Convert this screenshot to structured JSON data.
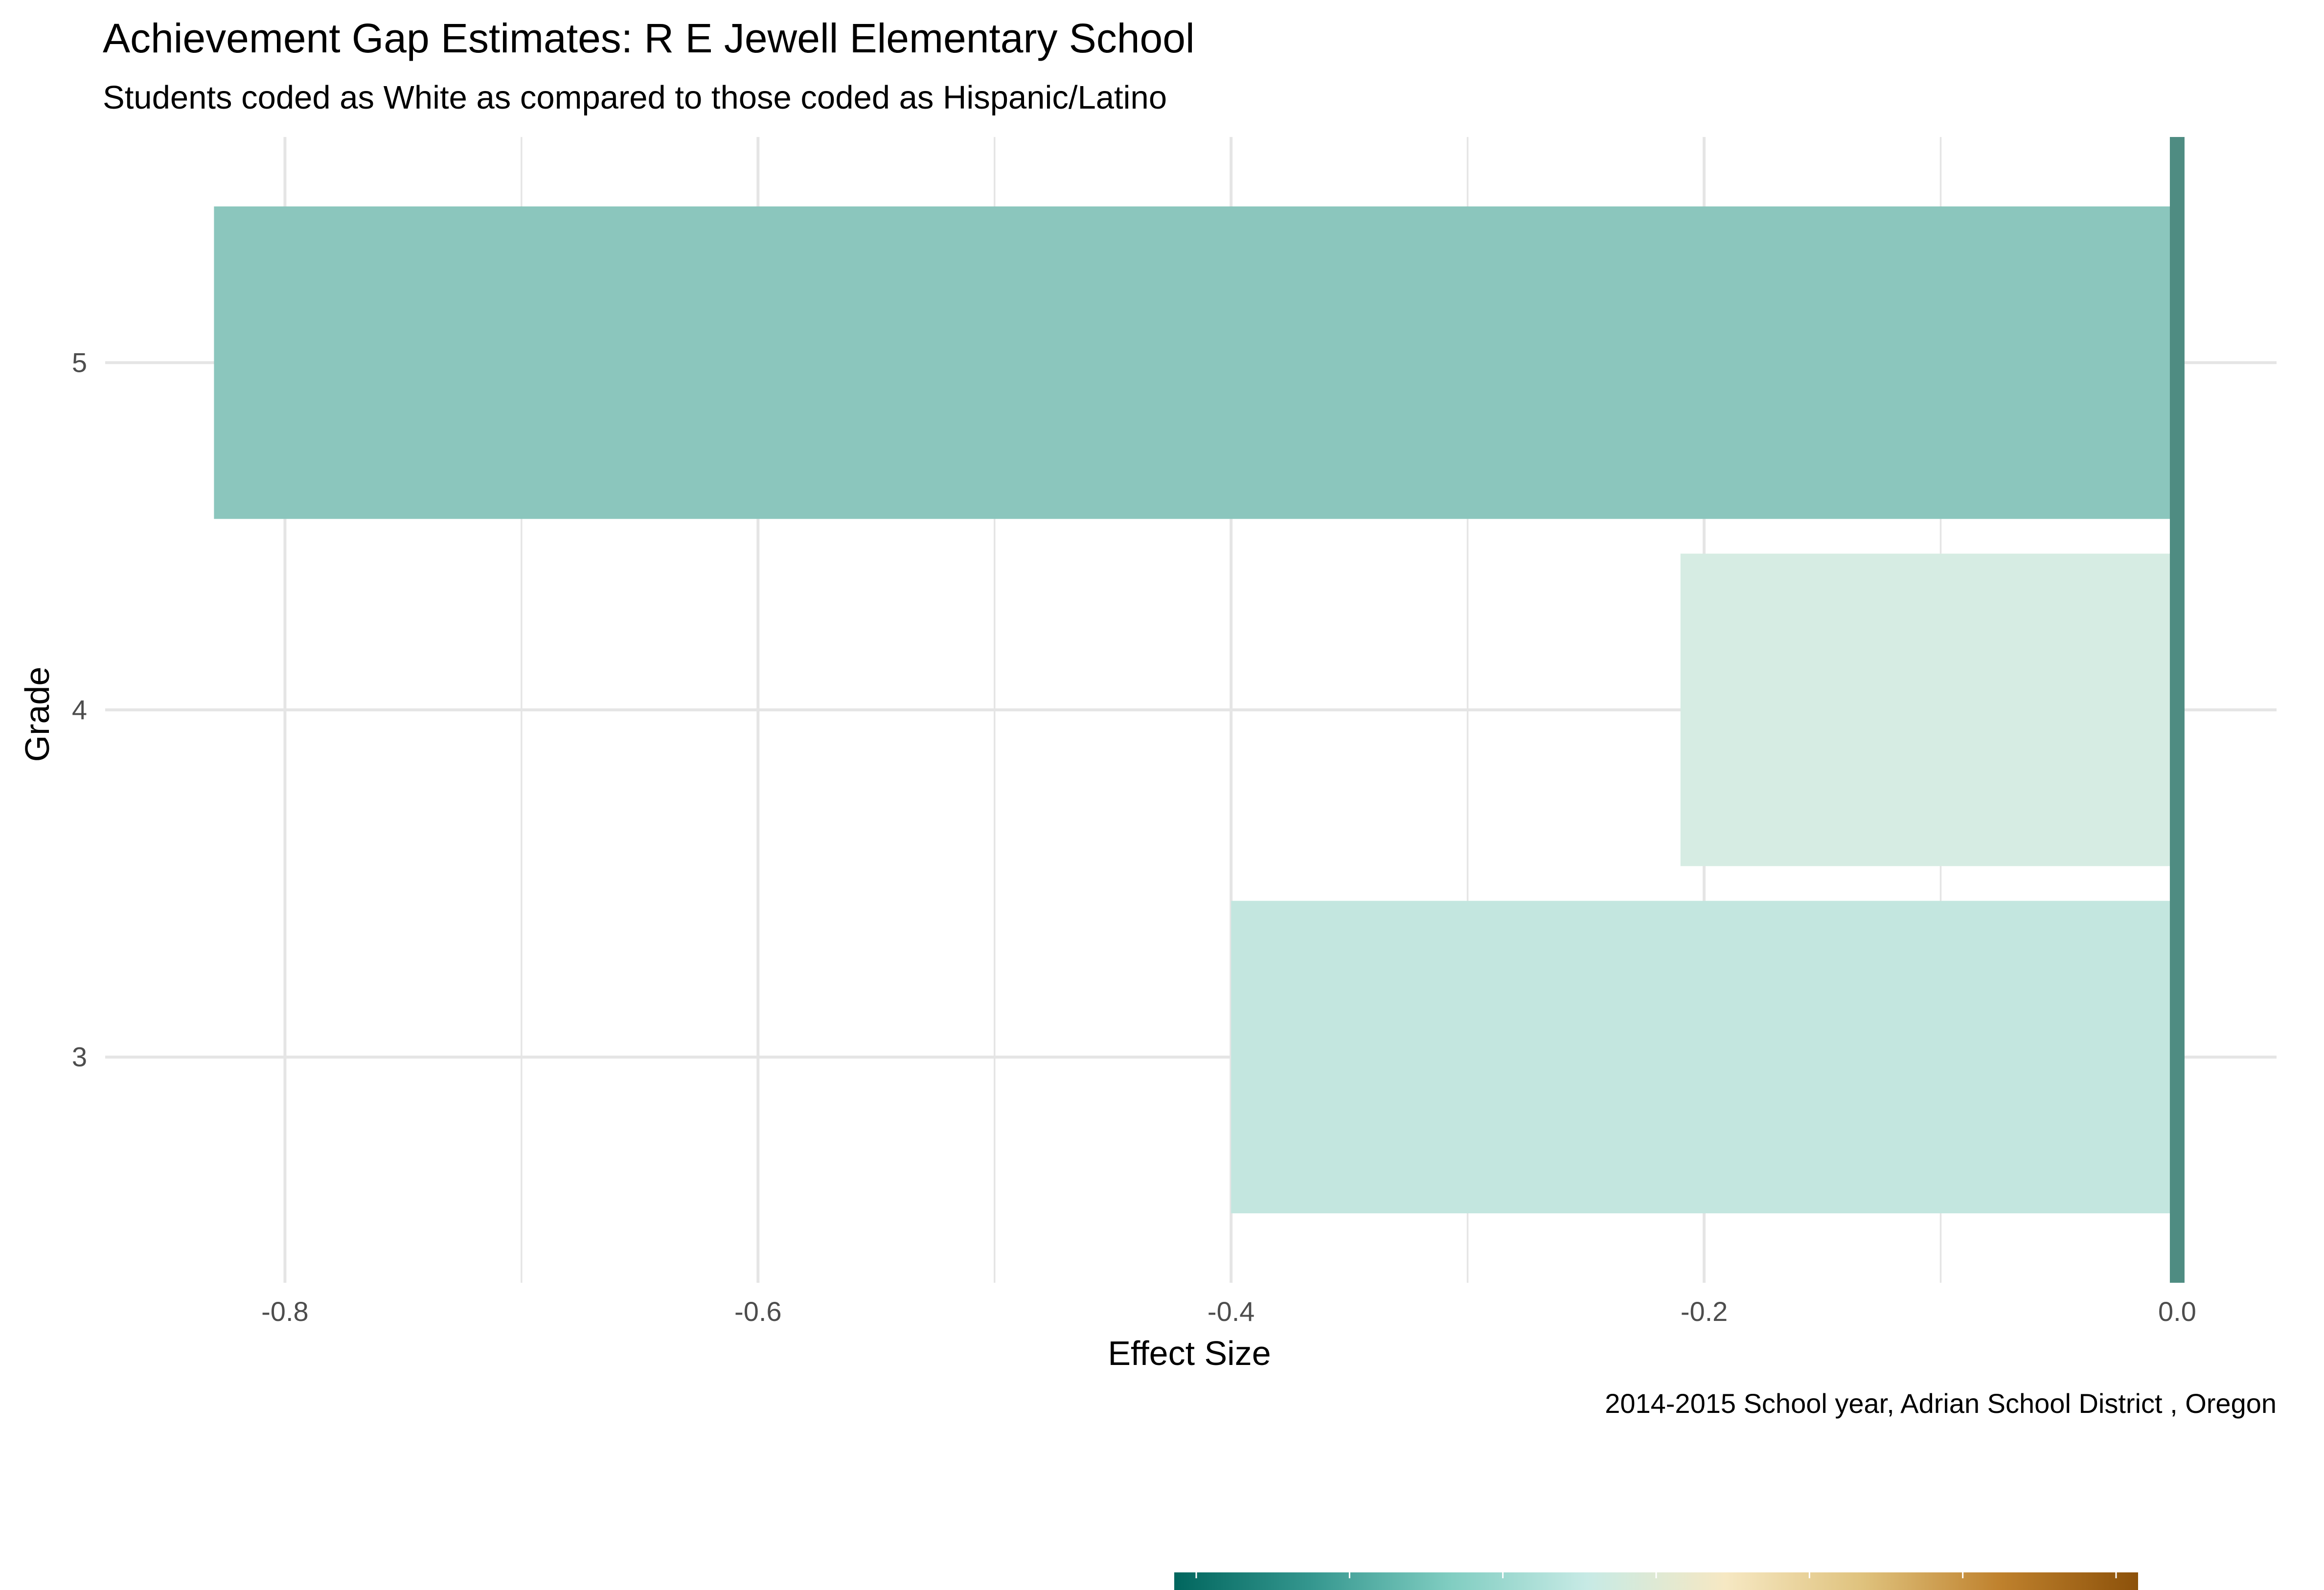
{
  "chart_data": {
    "type": "bar",
    "orientation": "horizontal",
    "title": "Achievement Gap Estimates: R E Jewell Elementary School",
    "subtitle": "Students coded as White as compared to those coded as Hispanic/Latino",
    "xlabel": "Effect Size",
    "ylabel": "Grade",
    "caption": "2014-2015 School year,  Adrian School District , Oregon",
    "categories": [
      "3",
      "4",
      "5"
    ],
    "values": [
      -0.4,
      -0.21,
      -0.83
    ],
    "bar_colors": [
      "#c3e6df",
      "#d6ece3",
      "#8bc6bd"
    ],
    "x_ticks": [
      "-0.8",
      "-0.6",
      "-0.4",
      "-0.2",
      "0.0"
    ],
    "x_tick_values": [
      -0.8,
      -0.6,
      -0.4,
      -0.2,
      0.0
    ],
    "xlim": [
      -0.876,
      0.042
    ],
    "reference_line": {
      "value": 0.0,
      "color": "#4f8c82"
    },
    "grid": true,
    "legend": {
      "position": "bottom",
      "type": "colorbar",
      "colors": [
        "#01665e",
        "#35978f",
        "#80cdc1",
        "#c7eae5",
        "#f6e8c3",
        "#dfc27d",
        "#bf812d",
        "#8c510a"
      ]
    }
  }
}
